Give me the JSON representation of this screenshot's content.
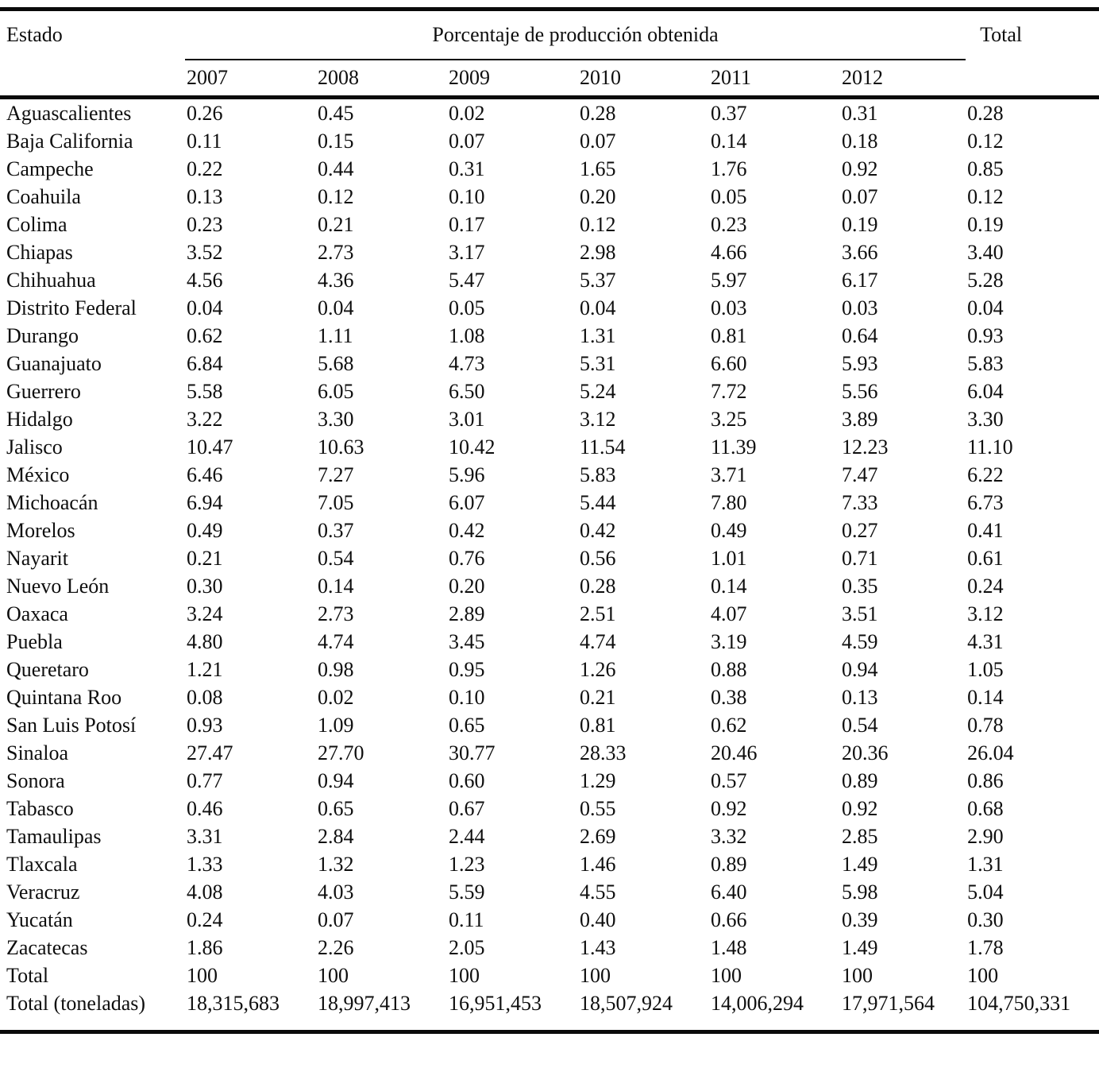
{
  "table": {
    "header": {
      "estado": "Estado",
      "group": "Porcentaje de producción obtenida",
      "total": "Total"
    },
    "years": [
      "2007",
      "2008",
      "2009",
      "2010",
      "2011",
      "2012"
    ],
    "rows": [
      [
        "Aguascalientes",
        "0.26",
        "0.45",
        "0.02",
        "0.28",
        "0.37",
        "0.31",
        "0.28"
      ],
      [
        "Baja California",
        "0.11",
        "0.15",
        "0.07",
        "0.07",
        "0.14",
        "0.18",
        "0.12"
      ],
      [
        "Campeche",
        "0.22",
        "0.44",
        "0.31",
        "1.65",
        "1.76",
        "0.92",
        "0.85"
      ],
      [
        "Coahuila",
        "0.13",
        "0.12",
        "0.10",
        "0.20",
        "0.05",
        "0.07",
        "0.12"
      ],
      [
        "Colima",
        "0.23",
        "0.21",
        "0.17",
        "0.12",
        "0.23",
        "0.19",
        "0.19"
      ],
      [
        "Chiapas",
        "3.52",
        "2.73",
        "3.17",
        "2.98",
        "4.66",
        "3.66",
        "3.40"
      ],
      [
        "Chihuahua",
        "4.56",
        "4.36",
        "5.47",
        "5.37",
        "5.97",
        "6.17",
        "5.28"
      ],
      [
        "Distrito Federal",
        "0.04",
        "0.04",
        "0.05",
        "0.04",
        "0.03",
        "0.03",
        "0.04"
      ],
      [
        "Durango",
        "0.62",
        "1.11",
        "1.08",
        "1.31",
        "0.81",
        "0.64",
        "0.93"
      ],
      [
        "Guanajuato",
        "6.84",
        "5.68",
        "4.73",
        "5.31",
        "6.60",
        "5.93",
        "5.83"
      ],
      [
        "Guerrero",
        "5.58",
        "6.05",
        "6.50",
        "5.24",
        "7.72",
        "5.56",
        "6.04"
      ],
      [
        "Hidalgo",
        "3.22",
        "3.30",
        "3.01",
        "3.12",
        "3.25",
        "3.89",
        "3.30"
      ],
      [
        "Jalisco",
        "10.47",
        "10.63",
        "10.42",
        "11.54",
        "11.39",
        "12.23",
        "11.10"
      ],
      [
        "México",
        "6.46",
        "7.27",
        "5.96",
        "5.83",
        "3.71",
        "7.47",
        "6.22"
      ],
      [
        "Michoacán",
        "6.94",
        "7.05",
        "6.07",
        "5.44",
        "7.80",
        "7.33",
        "6.73"
      ],
      [
        "Morelos",
        "0.49",
        "0.37",
        "0.42",
        "0.42",
        "0.49",
        "0.27",
        "0.41"
      ],
      [
        "Nayarit",
        "0.21",
        "0.54",
        "0.76",
        "0.56",
        "1.01",
        "0.71",
        "0.61"
      ],
      [
        "Nuevo León",
        "0.30",
        "0.14",
        "0.20",
        "0.28",
        "0.14",
        "0.35",
        "0.24"
      ],
      [
        "Oaxaca",
        "3.24",
        "2.73",
        "2.89",
        "2.51",
        "4.07",
        "3.51",
        "3.12"
      ],
      [
        "Puebla",
        "4.80",
        "4.74",
        "3.45",
        "4.74",
        "3.19",
        "4.59",
        "4.31"
      ],
      [
        "Queretaro",
        "1.21",
        "0.98",
        "0.95",
        "1.26",
        "0.88",
        "0.94",
        "1.05"
      ],
      [
        "Quintana Roo",
        "0.08",
        "0.02",
        "0.10",
        "0.21",
        "0.38",
        "0.13",
        "0.14"
      ],
      [
        "San Luis Potosí",
        "0.93",
        "1.09",
        "0.65",
        "0.81",
        "0.62",
        "0.54",
        "0.78"
      ],
      [
        "Sinaloa",
        "27.47",
        "27.70",
        "30.77",
        "28.33",
        "20.46",
        "20.36",
        "26.04"
      ],
      [
        "Sonora",
        "0.77",
        "0.94",
        "0.60",
        "1.29",
        "0.57",
        "0.89",
        "0.86"
      ],
      [
        "Tabasco",
        "0.46",
        "0.65",
        "0.67",
        "0.55",
        "0.92",
        "0.92",
        "0.68"
      ],
      [
        "Tamaulipas",
        "3.31",
        "2.84",
        "2.44",
        "2.69",
        "3.32",
        "2.85",
        "2.90"
      ],
      [
        "Tlaxcala",
        "1.33",
        "1.32",
        "1.23",
        "1.46",
        "0.89",
        "1.49",
        "1.31"
      ],
      [
        "Veracruz",
        "4.08",
        "4.03",
        "5.59",
        "4.55",
        "6.40",
        "5.98",
        "5.04"
      ],
      [
        "Yucatán",
        "0.24",
        "0.07",
        "0.11",
        "0.40",
        "0.66",
        "0.39",
        "0.30"
      ],
      [
        "Zacatecas",
        "1.86",
        "2.26",
        "2.05",
        "1.43",
        "1.48",
        "1.49",
        "1.78"
      ],
      [
        "Total",
        "100",
        "100",
        "100",
        "100",
        "100",
        "100",
        "100"
      ],
      [
        "Total (toneladas)",
        "18,315,683",
        "18,997,413",
        "16,951,453",
        "18,507,924",
        "14,006,294",
        "17,971,564",
        "104,750,331"
      ]
    ]
  }
}
